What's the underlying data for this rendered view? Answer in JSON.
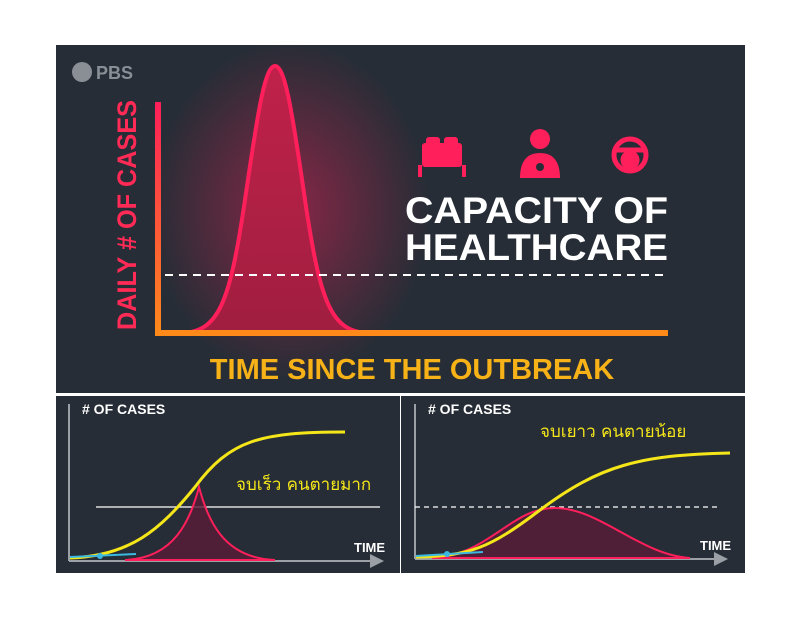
{
  "logo": {
    "text": "PBS"
  },
  "main_chart": {
    "y_label": "DAILY # OF CASES",
    "x_label": "TIME SINCE THE OUTBREAK",
    "capacity_line1": "CAPACITY OF",
    "capacity_line2": "HEALTHCARE",
    "icons": [
      "bed-icon",
      "doctor-icon",
      "ventilator-mask-icon"
    ]
  },
  "left_chart": {
    "y_label": "# OF CASES",
    "x_label": "TIME",
    "annotation": "จบเร็ว คนตายมาก"
  },
  "right_chart": {
    "y_label": "# OF CASES",
    "x_label": "TIME",
    "annotation": "จบเยาว คนตายน้อย"
  },
  "colors": {
    "panel": "#262d36",
    "pink": "#ff1f5a",
    "orange": "#ff9a1a",
    "yellow": "#f5e61a",
    "gold": "#f7b217",
    "white": "#ffffff"
  }
}
